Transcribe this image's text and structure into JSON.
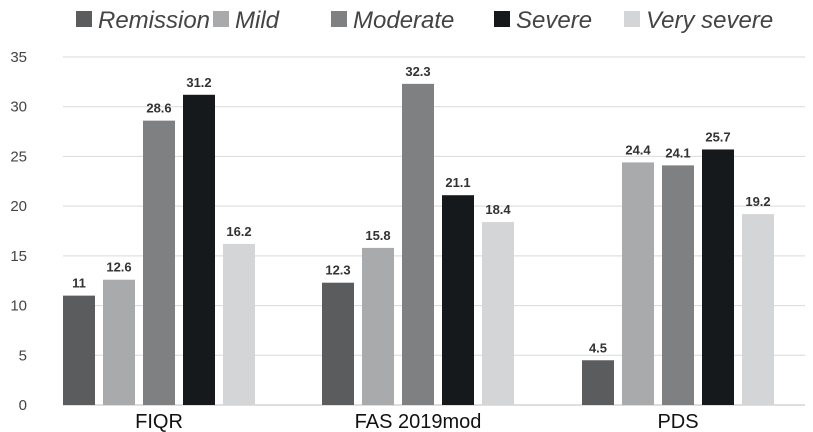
{
  "chart_data": {
    "type": "bar",
    "categories": [
      "FIQR",
      "FAS 2019mod",
      "PDS"
    ],
    "series": [
      {
        "name": "Remission",
        "values": [
          11,
          12.3,
          4.5
        ],
        "color": "#5a5c5e"
      },
      {
        "name": "Mild",
        "values": [
          12.6,
          15.8,
          24.4
        ],
        "color": "#a8aaab"
      },
      {
        "name": "Moderate",
        "values": [
          28.6,
          32.3,
          24.1
        ],
        "color": "#7e8082"
      },
      {
        "name": "Severe",
        "values": [
          31.2,
          21.1,
          25.7
        ],
        "color": "#16191c"
      },
      {
        "name": "Very severe",
        "values": [
          16.2,
          18.4,
          19.2
        ],
        "color": "#d4d5d6"
      }
    ],
    "data_labels": [
      [
        "11",
        "12.3",
        "4.5"
      ],
      [
        "12.6",
        "15.8",
        "24.4"
      ],
      [
        "28.6",
        "32.3",
        "24.1"
      ],
      [
        "31.2",
        "21.1",
        "25.7"
      ],
      [
        "16.2",
        "18.4",
        "19.2"
      ]
    ],
    "y_ticks": [
      "0",
      "5",
      "10",
      "15",
      "20",
      "25",
      "30",
      "35"
    ],
    "ylim": [
      0,
      35
    ],
    "grid": true,
    "legend_position": "top"
  }
}
